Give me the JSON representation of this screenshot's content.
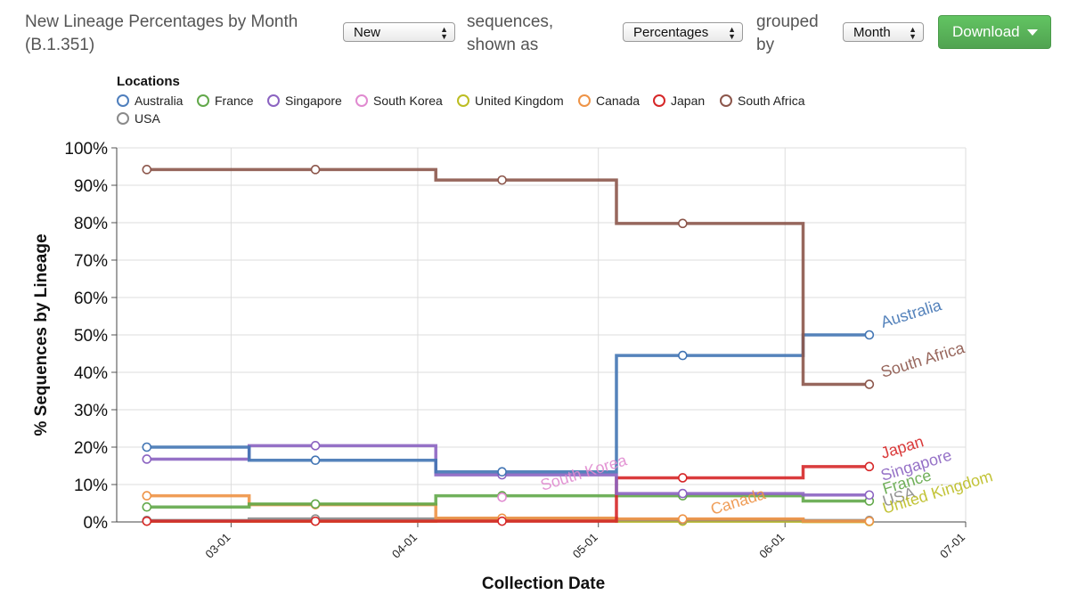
{
  "header": {
    "title": "New Lineage Percentages by Month (B.1.351)",
    "label_sequences": "sequences, shown as",
    "label_grouped": "grouped by",
    "select_type": "New",
    "select_mode": "Percentages",
    "select_group": "Month",
    "download_label": "Download"
  },
  "legend": {
    "title": "Locations",
    "items": [
      {
        "name": "Australia",
        "color": "#4f7fbd"
      },
      {
        "name": "France",
        "color": "#62a84a"
      },
      {
        "name": "Singapore",
        "color": "#8b63c1"
      },
      {
        "name": "South Korea",
        "color": "#e08ad0"
      },
      {
        "name": "United Kingdom",
        "color": "#bcbd22"
      },
      {
        "name": "Canada",
        "color": "#ee9346"
      },
      {
        "name": "Japan",
        "color": "#d62728"
      },
      {
        "name": "South Africa",
        "color": "#8c564b"
      },
      {
        "name": "USA",
        "color": "#8a8a8a"
      }
    ]
  },
  "chart_data": {
    "type": "line",
    "step": true,
    "xlabel": "Collection Date",
    "ylabel": "% Sequences by Lineage",
    "ylim": [
      0,
      100
    ],
    "yticks": [
      "0%",
      "10%",
      "20%",
      "30%",
      "40%",
      "50%",
      "60%",
      "70%",
      "80%",
      "90%",
      "100%"
    ],
    "xticks": [
      "03-01",
      "04-01",
      "05-01",
      "06-01",
      "07-01"
    ],
    "x": [
      "2021-02-15",
      "2021-03-15",
      "2021-04-15",
      "2021-05-15",
      "2021-06-15"
    ],
    "grid": true,
    "series": [
      {
        "name": "South Africa",
        "color": "#8c564b",
        "values": [
          94.2,
          94.2,
          91.4,
          79.8,
          36.8
        ],
        "label": "South Africa"
      },
      {
        "name": "Australia",
        "color": "#4275b4",
        "values": [
          20.0,
          16.5,
          13.4,
          44.5,
          50.0
        ],
        "label": "Australia"
      },
      {
        "name": "Singapore",
        "color": "#8b63c1",
        "values": [
          16.8,
          20.4,
          12.6,
          7.6,
          7.2
        ],
        "label": "Singapore"
      },
      {
        "name": "Japan",
        "color": "#d62728",
        "values": [
          0.2,
          0.2,
          0.2,
          11.8,
          14.8
        ],
        "label": "Japan"
      },
      {
        "name": "South Korea",
        "color": "#e08ad0",
        "values": [
          null,
          null,
          6.6,
          null,
          null
        ],
        "label": "South Korea"
      },
      {
        "name": "France",
        "color": "#62a84a",
        "values": [
          4.0,
          4.8,
          7.0,
          7.0,
          5.6
        ],
        "label": "France"
      },
      {
        "name": "Canada",
        "color": "#ee9346",
        "values": [
          7.0,
          4.6,
          1.0,
          0.8,
          0.2
        ],
        "label": "Canada"
      },
      {
        "name": "USA",
        "color": "#8a8a8a",
        "values": [
          0.4,
          0.8,
          0.8,
          0.6,
          0.4
        ],
        "label": "USA"
      },
      {
        "name": "United Kingdom",
        "color": "#bcbd22",
        "values": [
          0.2,
          0.2,
          0.3,
          0.2,
          0.1
        ],
        "label": "United Kingdom"
      }
    ]
  }
}
